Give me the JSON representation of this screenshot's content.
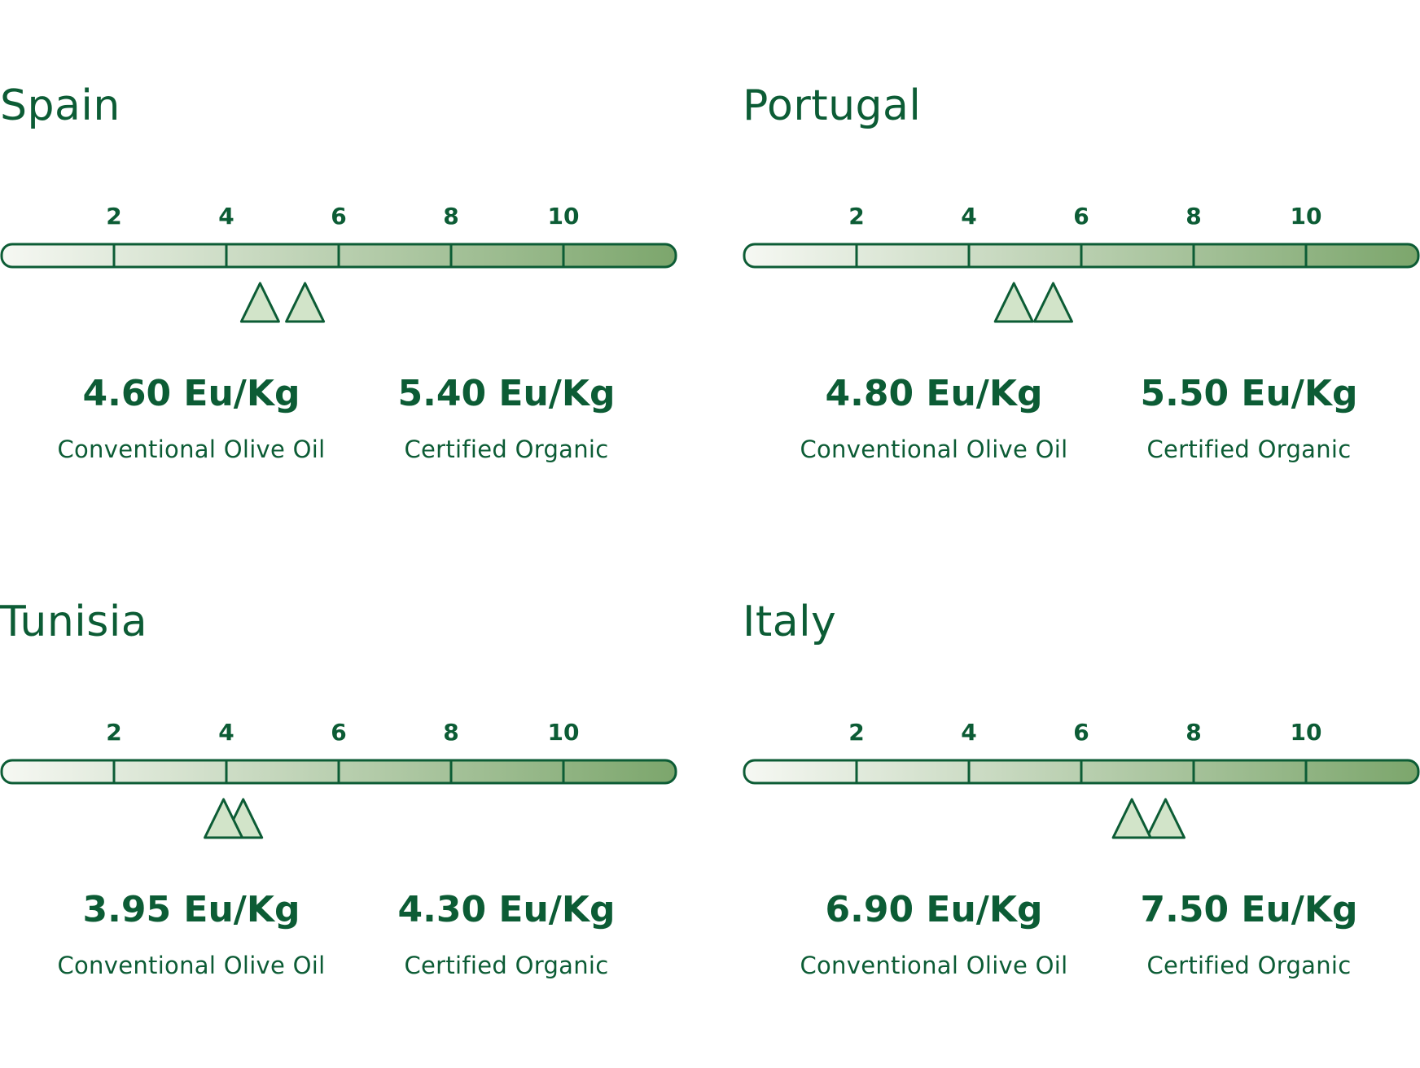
{
  "colors": {
    "text": "#0c5c35",
    "outline": "#0c5c35",
    "bar_start": "#f6f8f3",
    "bar_end": "#7ca66c",
    "marker_fill": "#d2e4c9"
  },
  "chart_data": [
    {
      "type": "scale-markers",
      "title": "Spain",
      "ticks": [
        2,
        4,
        6,
        8,
        10
      ],
      "range": [
        0,
        12
      ],
      "series": [
        {
          "label": "4.60 Eu/Kg",
          "value": 4.6,
          "category": "Conventional Olive Oil"
        },
        {
          "label": "5.40 Eu/Kg",
          "value": 5.4,
          "category": "Certified Organic"
        }
      ]
    },
    {
      "type": "scale-markers",
      "title": "Portugal",
      "ticks": [
        2,
        4,
        6,
        8,
        10
      ],
      "range": [
        0,
        12
      ],
      "series": [
        {
          "label": "4.80 Eu/Kg",
          "value": 4.8,
          "category": "Conventional Olive Oil"
        },
        {
          "label": "5.50 Eu/Kg",
          "value": 5.5,
          "category": "Certified Organic"
        }
      ]
    },
    {
      "type": "scale-markers",
      "title": "Tunisia",
      "ticks": [
        2,
        4,
        6,
        8,
        10
      ],
      "range": [
        0,
        12
      ],
      "series": [
        {
          "label": "3.95 Eu/Kg",
          "value": 3.95,
          "category": "Conventional Olive Oil"
        },
        {
          "label": "4.30 Eu/Kg",
          "value": 4.3,
          "category": "Certified Organic"
        }
      ]
    },
    {
      "type": "scale-markers",
      "title": "Italy",
      "ticks": [
        2,
        4,
        6,
        8,
        10
      ],
      "range": [
        0,
        12
      ],
      "series": [
        {
          "label": "6.90 Eu/Kg",
          "value": 6.9,
          "category": "Conventional Olive Oil"
        },
        {
          "label": "7.50 Eu/Kg",
          "value": 7.5,
          "category": "Certified Organic"
        }
      ]
    }
  ]
}
